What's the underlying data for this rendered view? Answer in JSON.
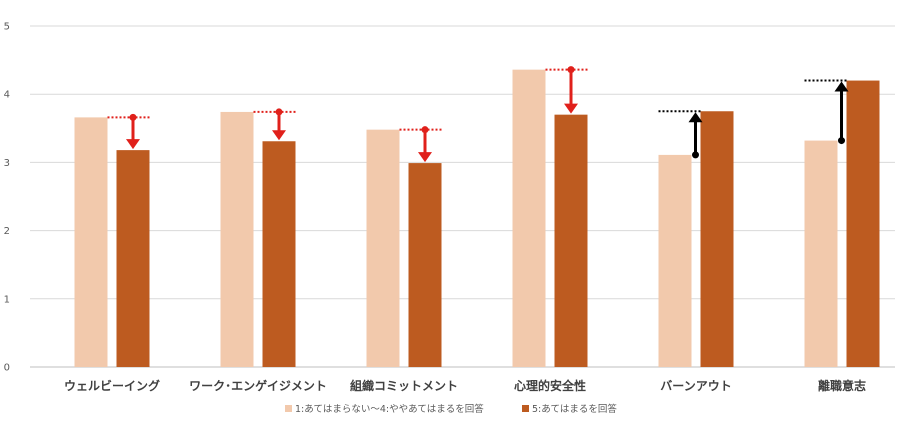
{
  "chart_data": {
    "type": "bar",
    "categories": [
      "ウェルビーイング",
      "ワーク･エンゲイジメント",
      "組織コミットメント",
      "心理的安全性",
      "バーンアウト",
      "離職意志"
    ],
    "series": [
      {
        "name": "1:あてはまらない～4:ややあてはまるを回答",
        "color": "#F2C9AC",
        "values": [
          3.66,
          3.74,
          3.48,
          4.36,
          3.11,
          3.32
        ]
      },
      {
        "name": "5:あてはまるを回答",
        "color": "#BD5B20",
        "values": [
          3.18,
          3.31,
          2.99,
          3.7,
          3.75,
          4.2
        ]
      }
    ],
    "ylim": [
      0,
      5
    ],
    "yticks": [
      "0",
      "1",
      "2",
      "3",
      "4",
      "5"
    ],
    "grid": true,
    "legend": "bottom",
    "arrows": [
      {
        "from": 3.66,
        "to": 3.18,
        "color": "#E0201B"
      },
      {
        "from": 3.74,
        "to": 3.31,
        "color": "#E0201B"
      },
      {
        "from": 3.48,
        "to": 2.99,
        "color": "#E0201B"
      },
      {
        "from": 4.36,
        "to": 3.7,
        "color": "#E0201B"
      },
      {
        "from": 3.11,
        "to": 3.75,
        "color": "#000000"
      },
      {
        "from": 3.32,
        "to": 4.2,
        "color": "#000000"
      }
    ]
  }
}
